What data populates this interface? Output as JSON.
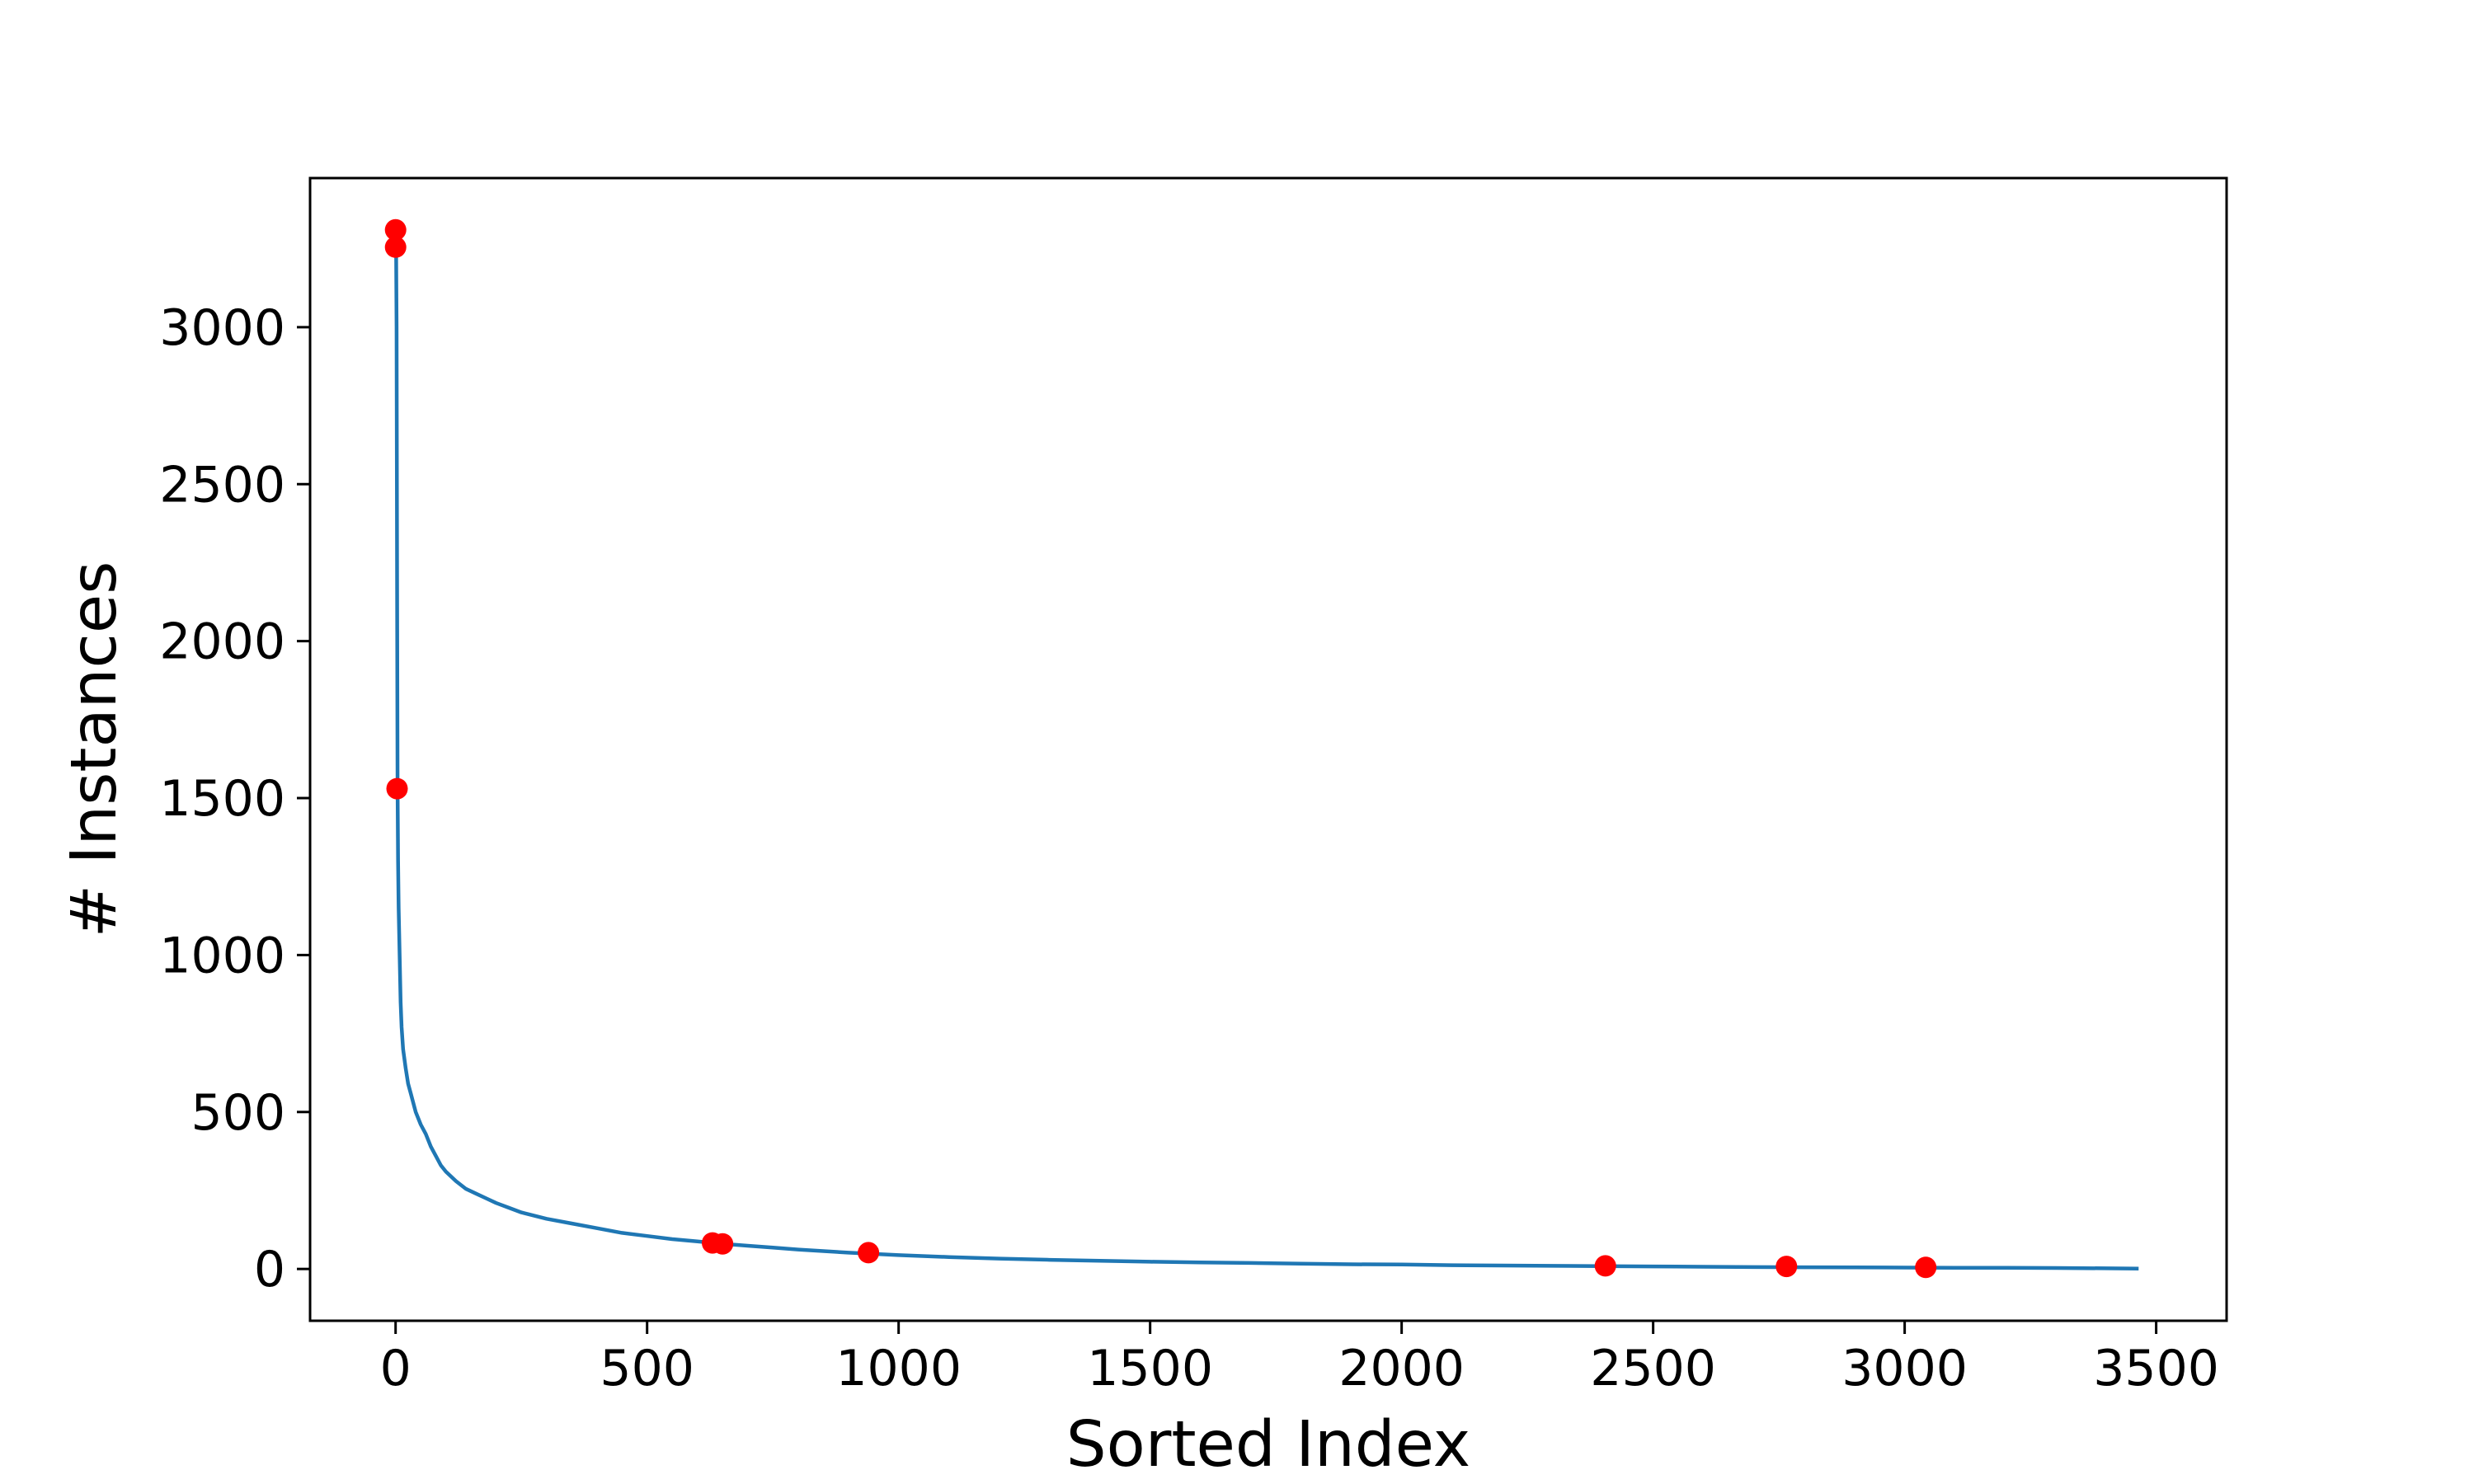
{
  "chart_data": {
    "type": "line",
    "title": "",
    "xlabel": "Sorted Index",
    "ylabel": "# Instances",
    "xlim": [
      -170,
      3640
    ],
    "ylim": [
      -165,
      3475
    ],
    "xticks": [
      0,
      500,
      1000,
      1500,
      2000,
      2500,
      3000,
      3500
    ],
    "yticks": [
      0,
      500,
      1000,
      1500,
      2000,
      2500,
      3000
    ],
    "grid": false,
    "legend": "none",
    "line_color": "#1f77b4",
    "marker_color": "#ff0000",
    "series": [
      {
        "x": [
          0,
          1,
          2,
          3,
          4,
          5,
          6,
          8,
          10,
          12,
          15,
          20,
          25,
          30,
          40,
          50,
          60,
          70,
          80,
          90,
          100,
          120,
          140,
          160,
          180,
          200,
          225,
          250,
          275,
          300,
          350,
          400,
          450,
          500,
          550,
          600,
          650,
          700,
          750,
          800,
          900,
          1000,
          1100,
          1200,
          1300,
          1400,
          1500,
          1600,
          1700,
          1800,
          1900,
          2000,
          2100,
          2200,
          2300,
          2400,
          2500,
          2600,
          2700,
          2800,
          2900,
          3000,
          3100,
          3200,
          3300,
          3400,
          3465
        ],
        "y": [
          3310,
          3260,
          3000,
          2200,
          1530,
          1300,
          1150,
          1000,
          850,
          770,
          700,
          640,
          590,
          560,
          500,
          460,
          430,
          390,
          360,
          330,
          310,
          280,
          255,
          240,
          225,
          210,
          195,
          180,
          170,
          160,
          145,
          130,
          115,
          105,
          95,
          88,
          80,
          74,
          68,
          62,
          52,
          44,
          38,
          33,
          29,
          26,
          23,
          21,
          19,
          17,
          15,
          14,
          12,
          11,
          10,
          9,
          8,
          7,
          6,
          5.5,
          5,
          4.5,
          4,
          3.5,
          3,
          2,
          1
        ]
      }
    ],
    "highlighted_points": {
      "x": [
        0,
        0,
        3,
        630,
        650,
        940,
        2405,
        2765,
        3042
      ],
      "y": [
        3310,
        3255,
        1530,
        83,
        80,
        52,
        10,
        8,
        5
      ]
    }
  }
}
